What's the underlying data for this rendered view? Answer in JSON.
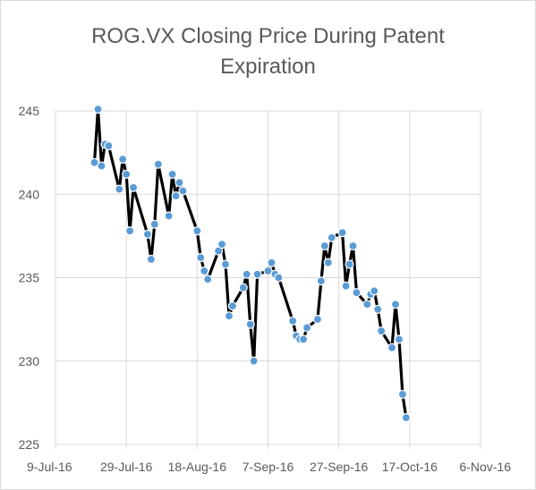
{
  "chart_data": {
    "type": "line",
    "title_lines": [
      "ROG.VX Closing Price During Patent",
      "Expiration"
    ],
    "xlabel": "",
    "ylabel": "",
    "ylim": [
      225,
      245
    ],
    "y_ticks": [
      "225",
      "230",
      "235",
      "240",
      "245"
    ],
    "x_ticks": [
      "9-Jul-16",
      "29-Jul-16",
      "18-Aug-16",
      "7-Sep-16",
      "27-Sep-16",
      "17-Oct-16",
      "6-Nov-16"
    ],
    "xlim": [
      "2016-07-09",
      "2016-11-06"
    ],
    "grid": true,
    "legend": "none",
    "colors": {
      "line": "#000000",
      "marker_fill": "#5b9bd5",
      "marker_edge": "#ffffff",
      "grid": "#d9d9d9",
      "text": "#595959"
    },
    "series": [
      {
        "x": [
          "2016-07-20",
          "2016-07-21",
          "2016-07-22",
          "2016-07-23",
          "2016-07-24",
          "2016-07-27",
          "2016-07-28",
          "2016-07-29",
          "2016-07-30",
          "2016-07-31",
          "2016-08-04",
          "2016-08-05",
          "2016-08-06",
          "2016-08-07",
          "2016-08-10",
          "2016-08-11",
          "2016-08-12",
          "2016-08-13",
          "2016-08-14",
          "2016-08-18",
          "2016-08-19",
          "2016-08-20",
          "2016-08-21",
          "2016-08-24",
          "2016-08-25",
          "2016-08-26",
          "2016-08-27",
          "2016-08-28",
          "2016-08-31",
          "2016-09-01",
          "2016-09-02",
          "2016-09-03",
          "2016-09-04",
          "2016-09-07",
          "2016-09-08",
          "2016-09-09",
          "2016-09-10",
          "2016-09-14",
          "2016-09-15",
          "2016-09-16",
          "2016-09-17",
          "2016-09-18",
          "2016-09-21",
          "2016-09-22",
          "2016-09-23",
          "2016-09-24",
          "2016-09-25",
          "2016-09-28",
          "2016-09-29",
          "2016-09-30",
          "2016-10-01",
          "2016-10-02",
          "2016-10-05",
          "2016-10-06",
          "2016-10-07",
          "2016-10-08",
          "2016-10-09",
          "2016-10-12",
          "2016-10-13",
          "2016-10-14",
          "2016-10-15"
        ],
        "y": [
          241.9,
          245.1,
          241.7,
          243.0,
          242.9,
          240.3,
          242.1,
          241.2,
          237.8,
          240.4,
          237.6,
          236.1,
          238.2,
          241.8,
          238.7,
          241.2,
          239.9,
          240.7,
          240.2,
          237.8,
          236.2,
          235.4,
          234.9,
          236.6,
          237.0,
          235.8,
          232.7,
          233.3,
          234.4,
          235.2,
          232.2,
          230.0,
          235.2,
          235.4,
          235.9,
          235.2,
          235.0,
          232.4,
          231.5,
          231.3,
          231.3,
          232.0,
          232.5,
          234.8,
          236.9,
          235.9,
          237.4,
          237.7,
          234.5,
          235.8,
          236.9,
          234.1,
          233.4,
          234.0,
          234.2,
          233.1,
          231.8,
          230.8,
          233.4,
          231.3,
          228.0
        ]
      }
    ],
    "last_point": {
      "x": "2016-10-16",
      "y": 226.6
    }
  }
}
